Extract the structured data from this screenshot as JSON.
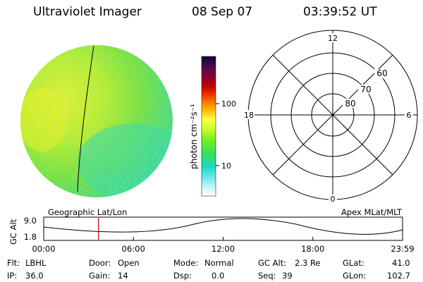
{
  "header": {
    "instrument": "Ultraviolet Imager",
    "date": "08 Sep 07",
    "time": "03:39:52 UT"
  },
  "colorbar": {
    "label": "photon cm⁻²s⁻¹",
    "ticks": [
      "100",
      "10"
    ],
    "colors": [
      "#0d0630",
      "#2a0a4a",
      "#5c0a48",
      "#8a0030",
      "#c00000",
      "#e83000",
      "#ff7a00",
      "#ffb000",
      "#ffff40",
      "#c8ff30",
      "#70f020",
      "#30e060",
      "#20d8c0",
      "#60e8e8",
      "#c0f4f4",
      "#ffffff"
    ]
  },
  "polar_plot": {
    "hour_labels": {
      "top": "12",
      "left": "18",
      "right": "6",
      "bottom": "0"
    },
    "lat_labels": [
      "60",
      "70",
      "80"
    ]
  },
  "timeline": {
    "left_title": "Geographic Lat/Lon",
    "right_title": "Apex MLat/MLT",
    "y_axis_label": "GC Alt",
    "y_ticks": [
      "9.0",
      "1.8"
    ],
    "x_ticks": [
      "00:00",
      "06:00",
      "12:00",
      "18:00",
      "23:59"
    ],
    "marker_hour": 3.66
  },
  "info": {
    "flt_label": "Flt:",
    "flt_value": "LBHL",
    "ip_label": "IP:",
    "ip_value": "36.0",
    "door_label": "Door:",
    "door_value": "Open",
    "gain_label": "Gain:",
    "gain_value": "14",
    "mode_label": "Mode:",
    "mode_value": "Normal",
    "dsp_label": "Dsp:",
    "dsp_value": "0.0",
    "gcalt_label": "GC Alt:",
    "gcalt_value": "2.3 Re",
    "seq_label": "Seq:",
    "seq_value": "39",
    "glat_label": "GLat:",
    "glat_value": "41.0",
    "glon_label": "GLon:",
    "glon_value": "102.7"
  },
  "colors": {
    "marker": "#d00000"
  }
}
